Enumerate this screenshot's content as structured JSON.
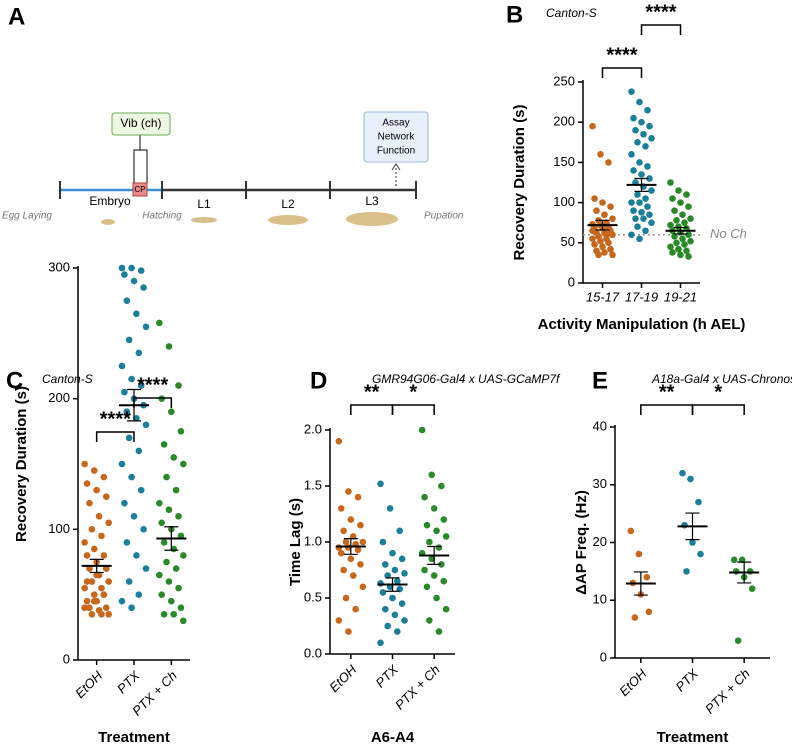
{
  "diagram": {
    "panel": "A",
    "vib": "Vib (ch)",
    "cp": "CP",
    "assay": [
      "Assay",
      "Network",
      "Function"
    ],
    "stages": [
      "Embryo",
      "L1",
      "L2",
      "L3"
    ],
    "events": [
      "Egg Laying",
      "Hatching",
      "Pupation"
    ]
  },
  "chart_data": [
    {
      "type": "strip",
      "panel": "B",
      "subtitle": "Canton-S",
      "y_label": "Recovery Duration (s)",
      "x_label": "Activity Manipulation (h AEL)",
      "categories": [
        "15-17",
        "17-19",
        "19-21"
      ],
      "ylim": [
        0,
        250
      ],
      "yticks": [
        0,
        50,
        100,
        150,
        200,
        250
      ],
      "reference": {
        "value": 60,
        "label": "No Ch"
      },
      "series": [
        {
          "name": "15-17",
          "color": "#c8661a",
          "mean": 72,
          "sem": 6,
          "values": [
            195,
            160,
            150,
            105,
            100,
            95,
            90,
            85,
            80,
            78,
            75,
            73,
            72,
            70,
            70,
            68,
            65,
            63,
            62,
            60,
            58,
            55,
            55,
            52,
            50,
            48,
            45,
            42,
            40,
            38,
            35,
            35,
            60,
            65
          ]
        },
        {
          "name": "17-19",
          "color": "#1a7f9a",
          "mean": 122,
          "sem": 8,
          "values": [
            238,
            225,
            215,
            205,
            200,
            195,
            190,
            185,
            180,
            175,
            170,
            160,
            150,
            145,
            140,
            135,
            130,
            125,
            120,
            115,
            110,
            105,
            100,
            100,
            95,
            90,
            88,
            85,
            80,
            80,
            75,
            70,
            65,
            60,
            55
          ]
        },
        {
          "name": "19-21",
          "color": "#2a8a2a",
          "mean": 65,
          "sem": 4,
          "values": [
            125,
            115,
            110,
            105,
            100,
            95,
            90,
            85,
            80,
            78,
            75,
            72,
            70,
            68,
            65,
            63,
            60,
            58,
            55,
            52,
            50,
            48,
            45,
            42,
            40,
            38,
            35,
            33
          ]
        }
      ],
      "annotations": [
        {
          "text": "****",
          "from": "15-17",
          "to": "17-19"
        },
        {
          "text": "****",
          "from": "17-19",
          "to": "19-21"
        }
      ]
    },
    {
      "type": "strip",
      "panel": "C",
      "subtitle": "Canton-S",
      "y_label": "Recovery Duration (s)",
      "x_label": "Treatment",
      "categories": [
        "EtOH",
        "PTX",
        "PTX + Ch"
      ],
      "ylim": [
        0,
        300
      ],
      "yticks": [
        0,
        100,
        200,
        300
      ],
      "series": [
        {
          "name": "EtOH",
          "color": "#c8661a",
          "mean": 72,
          "sem": 5,
          "values": [
            150,
            145,
            140,
            135,
            130,
            125,
            120,
            110,
            105,
            100,
            95,
            90,
            85,
            80,
            80,
            75,
            70,
            70,
            65,
            60,
            60,
            55,
            55,
            50,
            50,
            45,
            45,
            40,
            40,
            38,
            35,
            35,
            35,
            40,
            45,
            50,
            60,
            65,
            70
          ]
        },
        {
          "name": "PTX",
          "color": "#1a7f9a",
          "mean": 195,
          "sem": 12,
          "values": [
            300,
            300,
            298,
            295,
            290,
            285,
            275,
            265,
            255,
            245,
            235,
            225,
            215,
            210,
            205,
            200,
            195,
            190,
            185,
            180,
            170,
            160,
            150,
            140,
            130,
            120,
            110,
            100,
            90,
            80,
            70,
            60,
            50,
            45,
            40
          ]
        },
        {
          "name": "PTX + Ch",
          "color": "#2a8a2a",
          "mean": 93,
          "sem": 9,
          "values": [
            258,
            240,
            210,
            200,
            190,
            175,
            165,
            155,
            150,
            140,
            130,
            120,
            115,
            110,
            105,
            100,
            95,
            90,
            85,
            80,
            75,
            70,
            65,
            60,
            55,
            50,
            45,
            40,
            35,
            35,
            30
          ]
        }
      ],
      "annotations": [
        {
          "text": "****",
          "from": "EtOH",
          "to": "PTX"
        },
        {
          "text": "****",
          "from": "PTX",
          "to": "PTX + Ch"
        }
      ]
    },
    {
      "type": "strip",
      "panel": "D",
      "subtitle": "GMR94G06-Gal4 x UAS-GCaMP7f",
      "y_label": "Time Lag (s)",
      "x_label": "A6-A4",
      "categories": [
        "EtOH",
        "PTX",
        "PTX + Ch"
      ],
      "ylim": [
        0,
        2
      ],
      "yticks": [
        {
          "value": 0,
          "label": "0.0"
        },
        0.5,
        {
          "value": 1,
          "label": "1.0"
        },
        1.5,
        {
          "value": 2,
          "label": "2.0"
        }
      ],
      "series": [
        {
          "name": "EtOH",
          "color": "#c8661a",
          "mean": 0.96,
          "sem": 0.07,
          "values": [
            1.9,
            1.45,
            1.4,
            1.3,
            1.2,
            1.15,
            1.1,
            1.05,
            1.0,
            1.0,
            0.98,
            0.95,
            0.95,
            0.93,
            0.9,
            0.85,
            0.8,
            0.75,
            0.7,
            0.6,
            0.5,
            0.4,
            0.3,
            0.2
          ]
        },
        {
          "name": "PTX",
          "color": "#1a7f9a",
          "mean": 0.62,
          "sem": 0.06,
          "values": [
            1.52,
            1.3,
            1.1,
            1.0,
            0.9,
            0.85,
            0.8,
            0.75,
            0.72,
            0.7,
            0.65,
            0.63,
            0.6,
            0.58,
            0.55,
            0.5,
            0.45,
            0.4,
            0.35,
            0.3,
            0.25,
            0.2,
            0.1
          ]
        },
        {
          "name": "PTX + Ch",
          "color": "#2a8a2a",
          "mean": 0.88,
          "sem": 0.08,
          "values": [
            2.0,
            1.6,
            1.5,
            1.4,
            1.3,
            1.2,
            1.15,
            1.1,
            1.05,
            1.0,
            0.95,
            0.9,
            0.85,
            0.8,
            0.75,
            0.7,
            0.65,
            0.6,
            0.5,
            0.4,
            0.3,
            0.2
          ]
        }
      ],
      "annotations": [
        {
          "text": "**",
          "from": "EtOH",
          "to": "PTX"
        },
        {
          "text": "*",
          "from": "PTX",
          "to": "PTX + Ch"
        }
      ]
    },
    {
      "type": "strip",
      "panel": "E",
      "subtitle": "A18a-Gal4 x UAS-Chronos",
      "y_label": "ΔAP Freq. (Hz)",
      "x_label": "Treatment",
      "categories": [
        "EtOH",
        "PTX",
        "PTX + Ch"
      ],
      "ylim": [
        0,
        40
      ],
      "yticks": [
        0,
        10,
        20,
        30,
        40
      ],
      "series": [
        {
          "name": "EtOH",
          "color": "#c8661a",
          "mean": 12.9,
          "sem": 2,
          "values": [
            22,
            18,
            14,
            13,
            11,
            8,
            7
          ]
        },
        {
          "name": "PTX",
          "color": "#1a7f9a",
          "mean": 22.8,
          "sem": 2.3,
          "values": [
            32,
            31,
            27,
            23,
            20,
            18,
            15
          ]
        },
        {
          "name": "PTX + Ch",
          "color": "#2a8a2a",
          "mean": 14.8,
          "sem": 1.8,
          "values": [
            17,
            17,
            15,
            15,
            14,
            12,
            3
          ]
        }
      ],
      "annotations": [
        {
          "text": "**",
          "from": "EtOH",
          "to": "PTX"
        },
        {
          "text": "*",
          "from": "PTX",
          "to": "PTX + Ch"
        }
      ]
    }
  ]
}
